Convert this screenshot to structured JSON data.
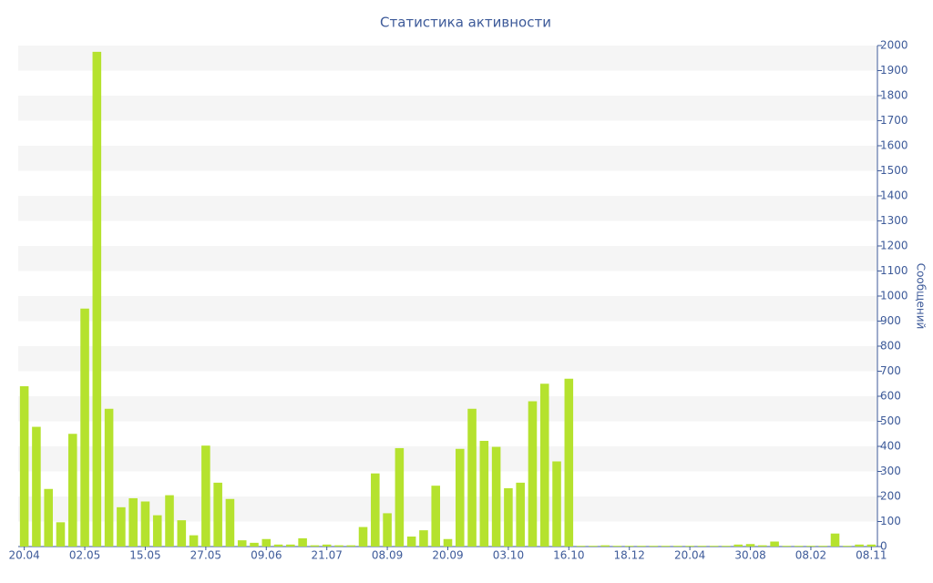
{
  "chart_data": {
    "type": "bar",
    "title": "Статистика активности",
    "y_label": "Сообщений",
    "color": "#b5e22e",
    "grid_bands": true,
    "y_axis_side": "right",
    "categories": [
      "20.04",
      null,
      null,
      null,
      null,
      "02.05",
      null,
      null,
      null,
      null,
      "15.05",
      null,
      null,
      null,
      null,
      "27.05",
      null,
      null,
      null,
      null,
      "09.06",
      null,
      null,
      null,
      null,
      "21.07",
      null,
      null,
      null,
      null,
      "08.09",
      null,
      null,
      null,
      null,
      "20.09",
      null,
      null,
      null,
      null,
      "03.10",
      null,
      null,
      null,
      null,
      "16.10",
      null,
      null,
      null,
      null,
      "18.12",
      null,
      null,
      null,
      null,
      "20.04",
      null,
      null,
      null,
      null,
      "30.08",
      null,
      null,
      null,
      null,
      "08.02",
      null,
      null,
      null,
      null,
      "08.11"
    ],
    "values": [
      640,
      478,
      230,
      97,
      450,
      950,
      1975,
      550,
      157,
      193,
      180,
      125,
      205,
      105,
      45,
      403,
      255,
      190,
      25,
      15,
      30,
      8,
      8,
      33,
      5,
      8,
      5,
      5,
      78,
      292,
      133,
      393,
      40,
      65,
      243,
      30,
      390,
      550,
      422,
      398,
      233,
      255,
      580,
      650,
      340,
      670,
      3,
      3,
      5,
      3,
      3,
      3,
      3,
      3,
      3,
      3,
      3,
      3,
      3,
      8,
      10,
      5,
      20,
      3,
      3,
      3,
      3,
      52,
      3,
      8,
      8
    ],
    "ylim": [
      0,
      2000
    ],
    "yticks": [
      0,
      100,
      200,
      300,
      400,
      500,
      600,
      700,
      800,
      900,
      1000,
      1100,
      1200,
      1300,
      1400,
      1500,
      1600,
      1700,
      1800,
      1900,
      2000
    ]
  }
}
